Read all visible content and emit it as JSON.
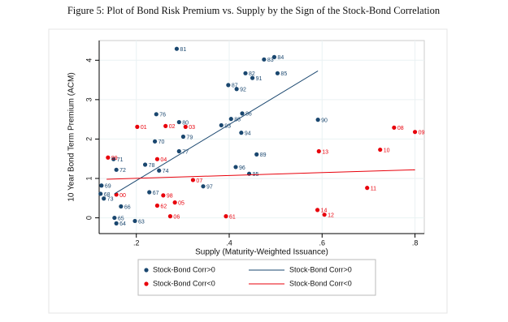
{
  "chart_data": {
    "type": "scatter",
    "title": "Figure 5: Plot of Bond Risk Premium vs. Supply by the Sign of the Stock-Bond Correlation",
    "x_label": "Supply (Maturity-Weighted Issuance)",
    "y_label": "10 Year Bond Term Premium (ACM)",
    "xlim": [
      0.12,
      0.82
    ],
    "ylim": [
      -0.4,
      4.5
    ],
    "xticks": [
      {
        "value": 0.2,
        "label": ".2"
      },
      {
        "value": 0.4,
        "label": ".4"
      },
      {
        "value": 0.6,
        "label": ".6"
      },
      {
        "value": 0.8,
        "label": ".8"
      }
    ],
    "yticks": [
      0,
      1,
      2,
      3,
      4
    ],
    "grid": true,
    "series": [
      {
        "name": "Stock-Bond Corr>0",
        "type": "scatter",
        "color": "#1a476f",
        "x": [
          0.287,
          0.497,
          0.475,
          0.435,
          0.45,
          0.504,
          0.398,
          0.416,
          0.243,
          0.428,
          0.404,
          0.591,
          0.292,
          0.383,
          0.301,
          0.426,
          0.24,
          0.292,
          0.459,
          0.219,
          0.249,
          0.414,
          0.443,
          0.157,
          0.151,
          0.344,
          0.125,
          0.228,
          0.123,
          0.13,
          0.167,
          0.153,
          0.157,
          0.197
        ],
        "values": [
          4.29,
          4.08,
          4.02,
          3.67,
          3.55,
          3.67,
          3.37,
          3.27,
          2.63,
          2.65,
          2.51,
          2.49,
          2.43,
          2.35,
          2.06,
          2.16,
          1.94,
          1.69,
          1.61,
          1.35,
          1.2,
          1.29,
          1.12,
          1.22,
          1.49,
          0.8,
          0.82,
          0.65,
          0.61,
          0.49,
          0.29,
          0.0,
          -0.14,
          -0.08
        ],
        "labels": [
          "81",
          "84",
          "83",
          "82",
          "91",
          "85",
          "87",
          "92",
          "76",
          "86",
          "88",
          "90",
          "80",
          "93",
          "79",
          "94",
          "70",
          "77",
          "89",
          "78",
          "74",
          "96",
          "95",
          "72",
          "71",
          "97",
          "69",
          "67",
          "68",
          "73",
          "66",
          "65",
          "64",
          "63"
        ]
      },
      {
        "name": "Stock-Bond Corr<0",
        "type": "scatter",
        "color": "#e8000b",
        "x": [
          0.202,
          0.263,
          0.306,
          0.755,
          0.8,
          0.593,
          0.725,
          0.139,
          0.245,
          0.322,
          0.697,
          0.157,
          0.258,
          0.283,
          0.245,
          0.273,
          0.393,
          0.59,
          0.605
        ],
        "values": [
          2.31,
          2.33,
          2.31,
          2.29,
          2.18,
          1.69,
          1.73,
          1.53,
          1.49,
          0.96,
          0.76,
          0.59,
          0.57,
          0.39,
          0.31,
          0.04,
          0.04,
          0.2,
          0.08
        ],
        "labels": [
          "01",
          "02",
          "03",
          "08",
          "09",
          "13",
          "10",
          "99",
          "04",
          "07",
          "11",
          "00",
          "98",
          "05",
          "62",
          "06",
          "61",
          "14",
          "12"
        ]
      },
      {
        "name": "Stock-Bond Corr>0",
        "type": "line",
        "color": "#1a476f",
        "x": [
          0.153,
          0.591
        ],
        "values": [
          0.61,
          3.73
        ]
      },
      {
        "name": "Stock-Bond Corr<0",
        "type": "line",
        "color": "#e8000b",
        "x": [
          0.136,
          0.8
        ],
        "values": [
          0.98,
          1.22
        ]
      }
    ]
  }
}
